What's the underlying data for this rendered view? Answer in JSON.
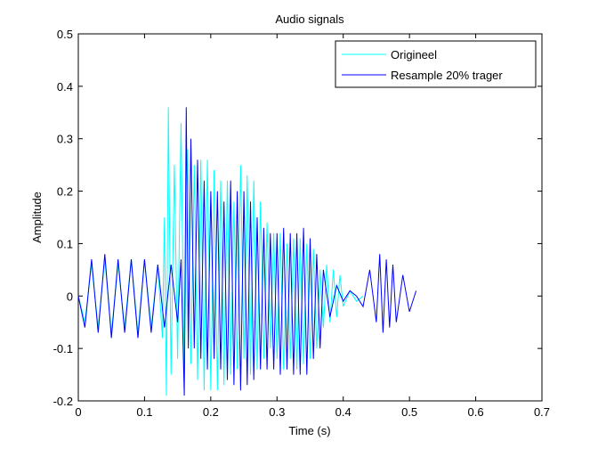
{
  "chart_data": {
    "type": "line",
    "title": "Audio signals",
    "xlabel": "Time (s)",
    "ylabel": "Amplitude",
    "xlim": [
      0,
      0.7
    ],
    "ylim": [
      -0.2,
      0.5
    ],
    "xticks": [
      0,
      0.1,
      0.2,
      0.3,
      0.4,
      0.5,
      0.6,
      0.7
    ],
    "xtick_labels": [
      "0",
      "0.1",
      "0.2",
      "0.3",
      "0.4",
      "0.5",
      "0.6",
      "0.7"
    ],
    "yticks": [
      -0.2,
      -0.1,
      0,
      0.1,
      0.2,
      0.3,
      0.4,
      0.5
    ],
    "ytick_labels": [
      "-0.2",
      "-0.1",
      "0",
      "0.1",
      "0.2",
      "0.3",
      "0.4",
      "0.5"
    ],
    "grid": false,
    "legend_position": "top-right",
    "series": [
      {
        "name": "Origineel",
        "color": "#00ffff",
        "points": [
          [
            0.0,
            0.0
          ],
          [
            0.01,
            -0.05
          ],
          [
            0.02,
            0.06
          ],
          [
            0.03,
            -0.06
          ],
          [
            0.04,
            0.07
          ],
          [
            0.05,
            -0.07
          ],
          [
            0.06,
            0.06
          ],
          [
            0.07,
            -0.06
          ],
          [
            0.08,
            0.07
          ],
          [
            0.09,
            -0.07
          ],
          [
            0.1,
            0.07
          ],
          [
            0.11,
            -0.06
          ],
          [
            0.12,
            0.06
          ],
          [
            0.127,
            -0.08
          ],
          [
            0.13,
            0.15
          ],
          [
            0.133,
            -0.19
          ],
          [
            0.136,
            0.36
          ],
          [
            0.14,
            -0.15
          ],
          [
            0.145,
            0.25
          ],
          [
            0.15,
            -0.12
          ],
          [
            0.155,
            0.33
          ],
          [
            0.16,
            -0.15
          ],
          [
            0.165,
            0.28
          ],
          [
            0.17,
            -0.13
          ],
          [
            0.175,
            0.25
          ],
          [
            0.18,
            -0.16
          ],
          [
            0.185,
            0.26
          ],
          [
            0.19,
            -0.18
          ],
          [
            0.195,
            0.26
          ],
          [
            0.2,
            -0.18
          ],
          [
            0.205,
            0.24
          ],
          [
            0.21,
            -0.18
          ],
          [
            0.215,
            0.22
          ],
          [
            0.22,
            -0.17
          ],
          [
            0.225,
            0.22
          ],
          [
            0.23,
            -0.15
          ],
          [
            0.235,
            0.18
          ],
          [
            0.24,
            -0.14
          ],
          [
            0.245,
            0.25
          ],
          [
            0.25,
            -0.12
          ],
          [
            0.255,
            0.23
          ],
          [
            0.26,
            -0.15
          ],
          [
            0.265,
            0.22
          ],
          [
            0.27,
            -0.14
          ],
          [
            0.275,
            0.18
          ],
          [
            0.28,
            -0.12
          ],
          [
            0.285,
            0.14
          ],
          [
            0.29,
            -0.1
          ],
          [
            0.295,
            0.12
          ],
          [
            0.3,
            -0.12
          ],
          [
            0.305,
            0.12
          ],
          [
            0.31,
            -0.14
          ],
          [
            0.315,
            0.1
          ],
          [
            0.32,
            -0.12
          ],
          [
            0.325,
            0.11
          ],
          [
            0.33,
            -0.14
          ],
          [
            0.335,
            0.11
          ],
          [
            0.34,
            -0.13
          ],
          [
            0.345,
            0.1
          ],
          [
            0.35,
            -0.12
          ],
          [
            0.355,
            0.09
          ],
          [
            0.36,
            -0.1
          ],
          [
            0.365,
            0.05
          ],
          [
            0.37,
            -0.06
          ],
          [
            0.375,
            0.06
          ],
          [
            0.38,
            -0.05
          ],
          [
            0.385,
            0.05
          ],
          [
            0.39,
            -0.04
          ],
          [
            0.395,
            0.04
          ],
          [
            0.4,
            -0.02
          ],
          [
            0.41,
            0.01
          ],
          [
            0.42,
            -0.01
          ],
          [
            0.43,
            0.0
          ]
        ]
      },
      {
        "name": "Resample 20% trager",
        "color": "#0000ff",
        "points": [
          [
            0.0,
            0.0
          ],
          [
            0.01,
            -0.06
          ],
          [
            0.02,
            0.07
          ],
          [
            0.03,
            -0.07
          ],
          [
            0.04,
            0.08
          ],
          [
            0.05,
            -0.08
          ],
          [
            0.06,
            0.07
          ],
          [
            0.07,
            -0.07
          ],
          [
            0.08,
            0.07
          ],
          [
            0.09,
            -0.08
          ],
          [
            0.1,
            0.07
          ],
          [
            0.11,
            -0.07
          ],
          [
            0.12,
            0.06
          ],
          [
            0.13,
            -0.06
          ],
          [
            0.14,
            0.06
          ],
          [
            0.15,
            -0.05
          ],
          [
            0.155,
            0.07
          ],
          [
            0.16,
            -0.19
          ],
          [
            0.163,
            0.36
          ],
          [
            0.166,
            -0.1
          ],
          [
            0.17,
            0.3
          ],
          [
            0.175,
            -0.1
          ],
          [
            0.18,
            0.26
          ],
          [
            0.185,
            -0.12
          ],
          [
            0.19,
            0.22
          ],
          [
            0.195,
            -0.14
          ],
          [
            0.2,
            0.2
          ],
          [
            0.205,
            -0.12
          ],
          [
            0.21,
            0.2
          ],
          [
            0.215,
            -0.14
          ],
          [
            0.22,
            0.18
          ],
          [
            0.225,
            -0.16
          ],
          [
            0.23,
            0.22
          ],
          [
            0.235,
            -0.17
          ],
          [
            0.24,
            0.2
          ],
          [
            0.245,
            -0.18
          ],
          [
            0.25,
            0.2
          ],
          [
            0.255,
            -0.17
          ],
          [
            0.26,
            0.18
          ],
          [
            0.265,
            -0.16
          ],
          [
            0.27,
            0.15
          ],
          [
            0.275,
            -0.14
          ],
          [
            0.28,
            0.13
          ],
          [
            0.285,
            -0.14
          ],
          [
            0.29,
            0.12
          ],
          [
            0.295,
            -0.14
          ],
          [
            0.3,
            0.12
          ],
          [
            0.305,
            -0.15
          ],
          [
            0.31,
            0.13
          ],
          [
            0.315,
            -0.14
          ],
          [
            0.32,
            0.12
          ],
          [
            0.325,
            -0.15
          ],
          [
            0.33,
            0.12
          ],
          [
            0.335,
            -0.15
          ],
          [
            0.34,
            0.13
          ],
          [
            0.345,
            -0.15
          ],
          [
            0.35,
            0.11
          ],
          [
            0.355,
            -0.12
          ],
          [
            0.36,
            0.08
          ],
          [
            0.365,
            -0.1
          ],
          [
            0.37,
            0.05
          ],
          [
            0.38,
            -0.04
          ],
          [
            0.39,
            0.02
          ],
          [
            0.4,
            -0.01
          ],
          [
            0.41,
            0.01
          ],
          [
            0.42,
            0.0
          ],
          [
            0.43,
            -0.02
          ],
          [
            0.44,
            0.05
          ],
          [
            0.45,
            -0.05
          ],
          [
            0.455,
            0.08
          ],
          [
            0.46,
            -0.07
          ],
          [
            0.465,
            0.07
          ],
          [
            0.47,
            -0.06
          ],
          [
            0.475,
            0.06
          ],
          [
            0.48,
            -0.05
          ],
          [
            0.49,
            0.04
          ],
          [
            0.5,
            -0.03
          ],
          [
            0.51,
            0.01
          ]
        ]
      }
    ]
  }
}
